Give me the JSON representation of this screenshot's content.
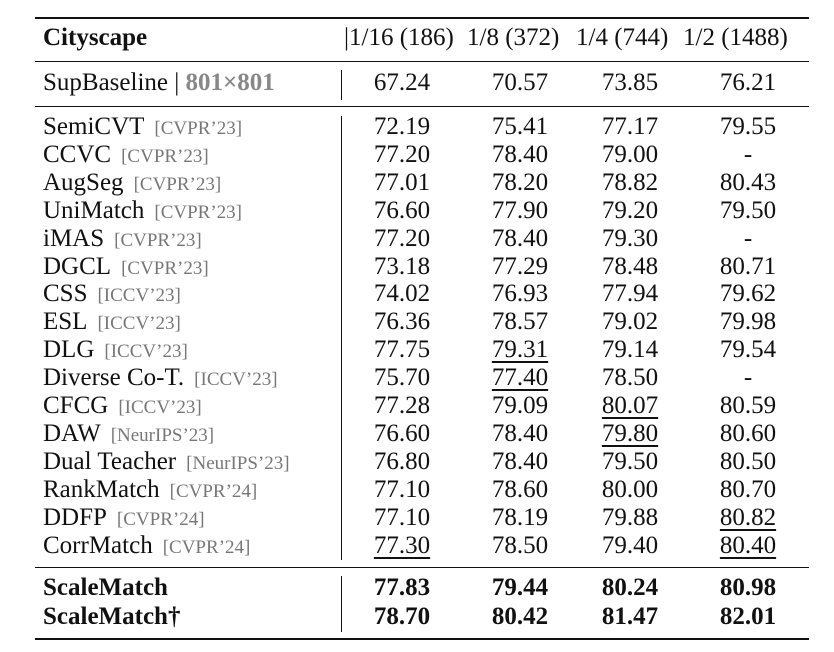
{
  "table": {
    "title": "Cityscape",
    "columns": [
      "|1/16 (186)",
      "1/8 (372)",
      "1/4 (744)",
      "1/2 (1488)"
    ],
    "baseline": {
      "name": "SupBaseline",
      "sep": "|",
      "resolution": "801×801",
      "values": [
        "67.24",
        "70.57",
        "73.85",
        "76.21"
      ]
    },
    "methods": [
      {
        "name": "SemiCVT",
        "venue": "[CVPR’23]",
        "values": [
          "72.19",
          "75.41",
          "77.17",
          "79.55"
        ]
      },
      {
        "name": "CCVC",
        "venue": "[CVPR’23]",
        "values": [
          "77.20",
          "78.40",
          "79.00",
          "-"
        ]
      },
      {
        "name": "AugSeg",
        "venue": "[CVPR’23]",
        "values": [
          "77.01",
          "78.20",
          "78.82",
          "80.43"
        ]
      },
      {
        "name": "UniMatch",
        "venue": "[CVPR’23]",
        "values": [
          "76.60",
          "77.90",
          "79.20",
          "79.50"
        ]
      },
      {
        "name": "iMAS",
        "venue": "[CVPR’23]",
        "values": [
          "77.20",
          "78.40",
          "79.30",
          "-"
        ]
      },
      {
        "name": "DGCL",
        "venue": "[CVPR’23]",
        "values": [
          "73.18",
          "77.29",
          "78.48",
          "80.71"
        ]
      },
      {
        "name": "CSS",
        "venue": "[ICCV’23]",
        "values": [
          "74.02",
          "76.93",
          "77.94",
          "79.62"
        ]
      },
      {
        "name": "ESL",
        "venue": "[ICCV’23]",
        "values": [
          "76.36",
          "78.57",
          "79.02",
          "79.98"
        ]
      },
      {
        "name": "DLG",
        "venue": "[ICCV’23]",
        "values": [
          "77.75",
          "79.31",
          "79.14",
          "79.54"
        ]
      },
      {
        "name": "Diverse Co-T.",
        "venue": "[ICCV’23]",
        "values": [
          "75.70",
          "77.40",
          "78.50",
          "-"
        ]
      },
      {
        "name": "CFCG",
        "venue": "[ICCV’23]",
        "values": [
          "77.28",
          "79.09",
          "80.07",
          "80.59"
        ]
      },
      {
        "name": "DAW",
        "venue": "[NeurIPS’23]",
        "values": [
          "76.60",
          "78.40",
          "79.80",
          "80.60"
        ]
      },
      {
        "name": "Dual Teacher",
        "venue": "[NeurIPS’23]",
        "values": [
          "76.80",
          "78.40",
          "79.50",
          "80.50"
        ]
      },
      {
        "name": "RankMatch",
        "venue": "[CVPR’24]",
        "values": [
          "77.10",
          "78.60",
          "80.00",
          "80.70"
        ]
      },
      {
        "name": "DDFP",
        "venue": "[CVPR’24]",
        "values": [
          "77.10",
          "78.19",
          "79.88",
          "80.82"
        ]
      },
      {
        "name": "CorrMatch",
        "venue": "[CVPR’24]",
        "values": [
          "77.30",
          "78.50",
          "79.40",
          "80.40"
        ]
      }
    ],
    "ours": [
      {
        "name": "ScaleMatch",
        "values": [
          "77.83",
          "79.44",
          "80.24",
          "80.98"
        ]
      },
      {
        "name": "ScaleMatch†",
        "values": [
          "78.70",
          "80.42",
          "81.47",
          "82.01"
        ]
      }
    ]
  }
}
